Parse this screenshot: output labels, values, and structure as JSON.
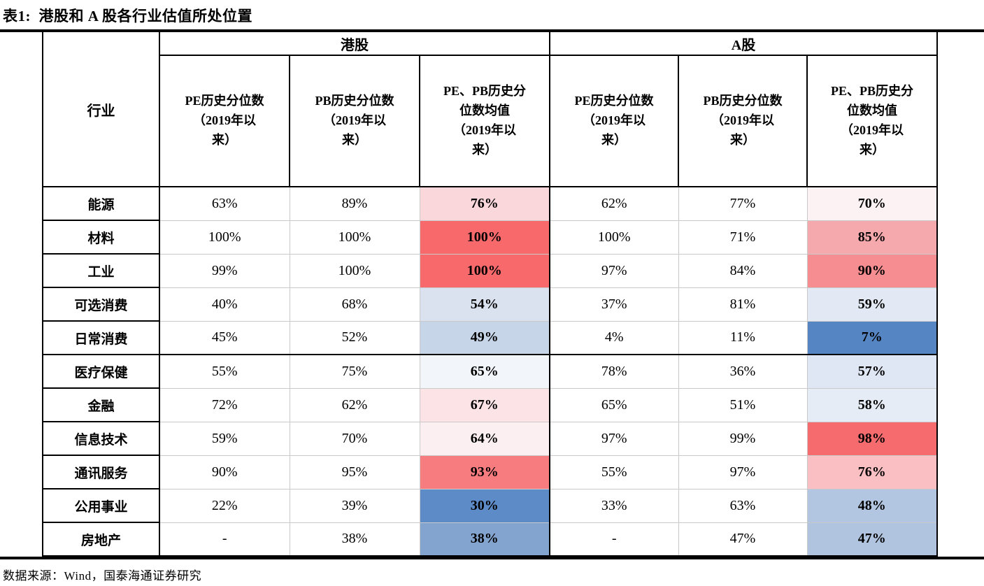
{
  "title": "表1:  港股和 A 股各行业估值所处位置",
  "source": "数据来源：Wind，国泰海通证券研究",
  "colors": {
    "heat_scale_max_red": "#F8696B",
    "heat_scale_mid_white": "#FCFCFF",
    "heat_scale_min_blue": "#5A8AC6",
    "grid_line_gray": "#C9C9C9",
    "structure_black": "#000000"
  },
  "table": {
    "industry_header": "行业",
    "groups": [
      {
        "label": "港股"
      },
      {
        "label": "A股"
      }
    ],
    "sub_headers": [
      "PE历史分位数\n（2019年以\n来）",
      "PB历史分位数\n（2019年以\n来）",
      "PE、PB历史分\n位数均值\n（2019年以\n来）",
      "PE历史分位数\n（2019年以\n来）",
      "PB历史分位数\n（2019年以\n来）",
      "PE、PB历史分\n位数均值\n（2019年以\n来）"
    ],
    "rows": [
      {
        "industry": "能源",
        "hk": {
          "pe": "63%",
          "pb": "89%",
          "avg": "76%",
          "avg_bg": "#F9D7DA"
        },
        "a": {
          "pe": "62%",
          "pb": "77%",
          "avg": "70%",
          "avg_bg": "#FCF1F3"
        },
        "divider_below": false
      },
      {
        "industry": "材料",
        "hk": {
          "pe": "100%",
          "pb": "100%",
          "avg": "100%",
          "avg_bg": "#F8696B"
        },
        "a": {
          "pe": "100%",
          "pb": "71%",
          "avg": "85%",
          "avg_bg": "#F6A9AC"
        },
        "divider_below": false
      },
      {
        "industry": "工业",
        "hk": {
          "pe": "99%",
          "pb": "100%",
          "avg": "100%",
          "avg_bg": "#F8696B"
        },
        "a": {
          "pe": "97%",
          "pb": "84%",
          "avg": "90%",
          "avg_bg": "#F68D90"
        },
        "divider_below": false
      },
      {
        "industry": "可选消费",
        "hk": {
          "pe": "40%",
          "pb": "68%",
          "avg": "54%",
          "avg_bg": "#DAE2F0"
        },
        "a": {
          "pe": "37%",
          "pb": "81%",
          "avg": "59%",
          "avg_bg": "#E2E9F4"
        },
        "divider_below": false
      },
      {
        "industry": "日常消费",
        "hk": {
          "pe": "45%",
          "pb": "52%",
          "avg": "49%",
          "avg_bg": "#C7D5E9"
        },
        "a": {
          "pe": "4%",
          "pb": "11%",
          "avg": "7%",
          "avg_bg": "#5585C3"
        },
        "divider_below": true
      },
      {
        "industry": "医疗保健",
        "hk": {
          "pe": "55%",
          "pb": "75%",
          "avg": "65%",
          "avg_bg": "#F2F5FA"
        },
        "a": {
          "pe": "78%",
          "pb": "36%",
          "avg": "57%",
          "avg_bg": "#DEE7F3"
        },
        "divider_below": false
      },
      {
        "industry": "金融",
        "hk": {
          "pe": "72%",
          "pb": "62%",
          "avg": "67%",
          "avg_bg": "#FBE3E6"
        },
        "a": {
          "pe": "65%",
          "pb": "51%",
          "avg": "58%",
          "avg_bg": "#E6ECF6"
        },
        "divider_below": false
      },
      {
        "industry": "信息技术",
        "hk": {
          "pe": "59%",
          "pb": "70%",
          "avg": "64%",
          "avg_bg": "#FCEFF1"
        },
        "a": {
          "pe": "97%",
          "pb": "99%",
          "avg": "98%",
          "avg_bg": "#F56B6E"
        },
        "divider_below": false
      },
      {
        "industry": "通讯服务",
        "hk": {
          "pe": "90%",
          "pb": "95%",
          "avg": "93%",
          "avg_bg": "#F77C7F"
        },
        "a": {
          "pe": "55%",
          "pb": "97%",
          "avg": "76%",
          "avg_bg": "#F9BFC2"
        },
        "divider_below": false
      },
      {
        "industry": "公用事业",
        "hk": {
          "pe": "22%",
          "pb": "39%",
          "avg": "30%",
          "avg_bg": "#5D8BC7"
        },
        "a": {
          "pe": "33%",
          "pb": "63%",
          "avg": "48%",
          "avg_bg": "#B2C6E1"
        },
        "divider_below": false
      },
      {
        "industry": "房地产",
        "hk": {
          "pe": "-",
          "pb": "38%",
          "avg": "38%",
          "avg_bg": "#84A4D0"
        },
        "a": {
          "pe": "-",
          "pb": "47%",
          "avg": "47%",
          "avg_bg": "#B0C4E0"
        },
        "divider_below": false
      }
    ]
  }
}
